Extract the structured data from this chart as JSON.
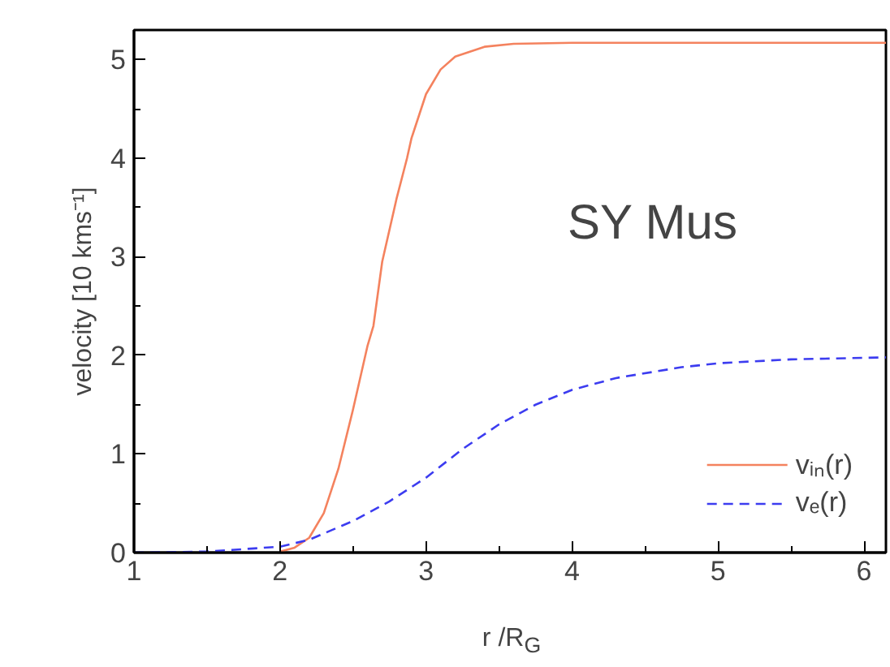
{
  "chart_data": {
    "type": "line",
    "xlabel": "r /R$_{G}$",
    "ylabel": "velocity [10 kms⁻¹]",
    "x": [
      2.0,
      2.1,
      2.2,
      2.3,
      2.4,
      2.5,
      2.6,
      2.64,
      2.7,
      2.8,
      2.87,
      2.9,
      3.0,
      3.1,
      3.2,
      3.4,
      3.6,
      4.0,
      5.0,
      6.15
    ],
    "series": [
      {
        "name": "vᵢₙ(r)",
        "color": "#f4825e",
        "line_style": "solid",
        "values": [
          0.01,
          0.05,
          0.15,
          0.4,
          0.85,
          1.45,
          2.1,
          2.3,
          2.95,
          3.6,
          4.0,
          4.2,
          4.65,
          4.9,
          5.03,
          5.13,
          5.16,
          5.17,
          5.17,
          5.17
        ]
      },
      {
        "name": "vₑ(r)",
        "color": "#3c3cf0",
        "line_style": "dashed",
        "x": [
          1.0,
          1.5,
          2.0,
          2.2,
          2.5,
          2.75,
          3.0,
          3.25,
          3.5,
          3.75,
          4.0,
          4.3,
          4.75,
          5.0,
          5.5,
          6.15
        ],
        "values": [
          0,
          0.01,
          0.06,
          0.13,
          0.32,
          0.52,
          0.76,
          1.05,
          1.3,
          1.5,
          1.65,
          1.77,
          1.88,
          1.92,
          1.96,
          1.98
        ]
      }
    ],
    "xlim": [
      1,
      6.15
    ],
    "ylim": [
      0,
      5.3
    ],
    "xticks": [
      1,
      2,
      3,
      4,
      5,
      6
    ],
    "yticks": [
      0,
      1,
      2,
      3,
      4,
      5
    ],
    "grid": false,
    "legend": "bottom right",
    "marker": "none",
    "annotations": [
      "SY Mus"
    ]
  }
}
